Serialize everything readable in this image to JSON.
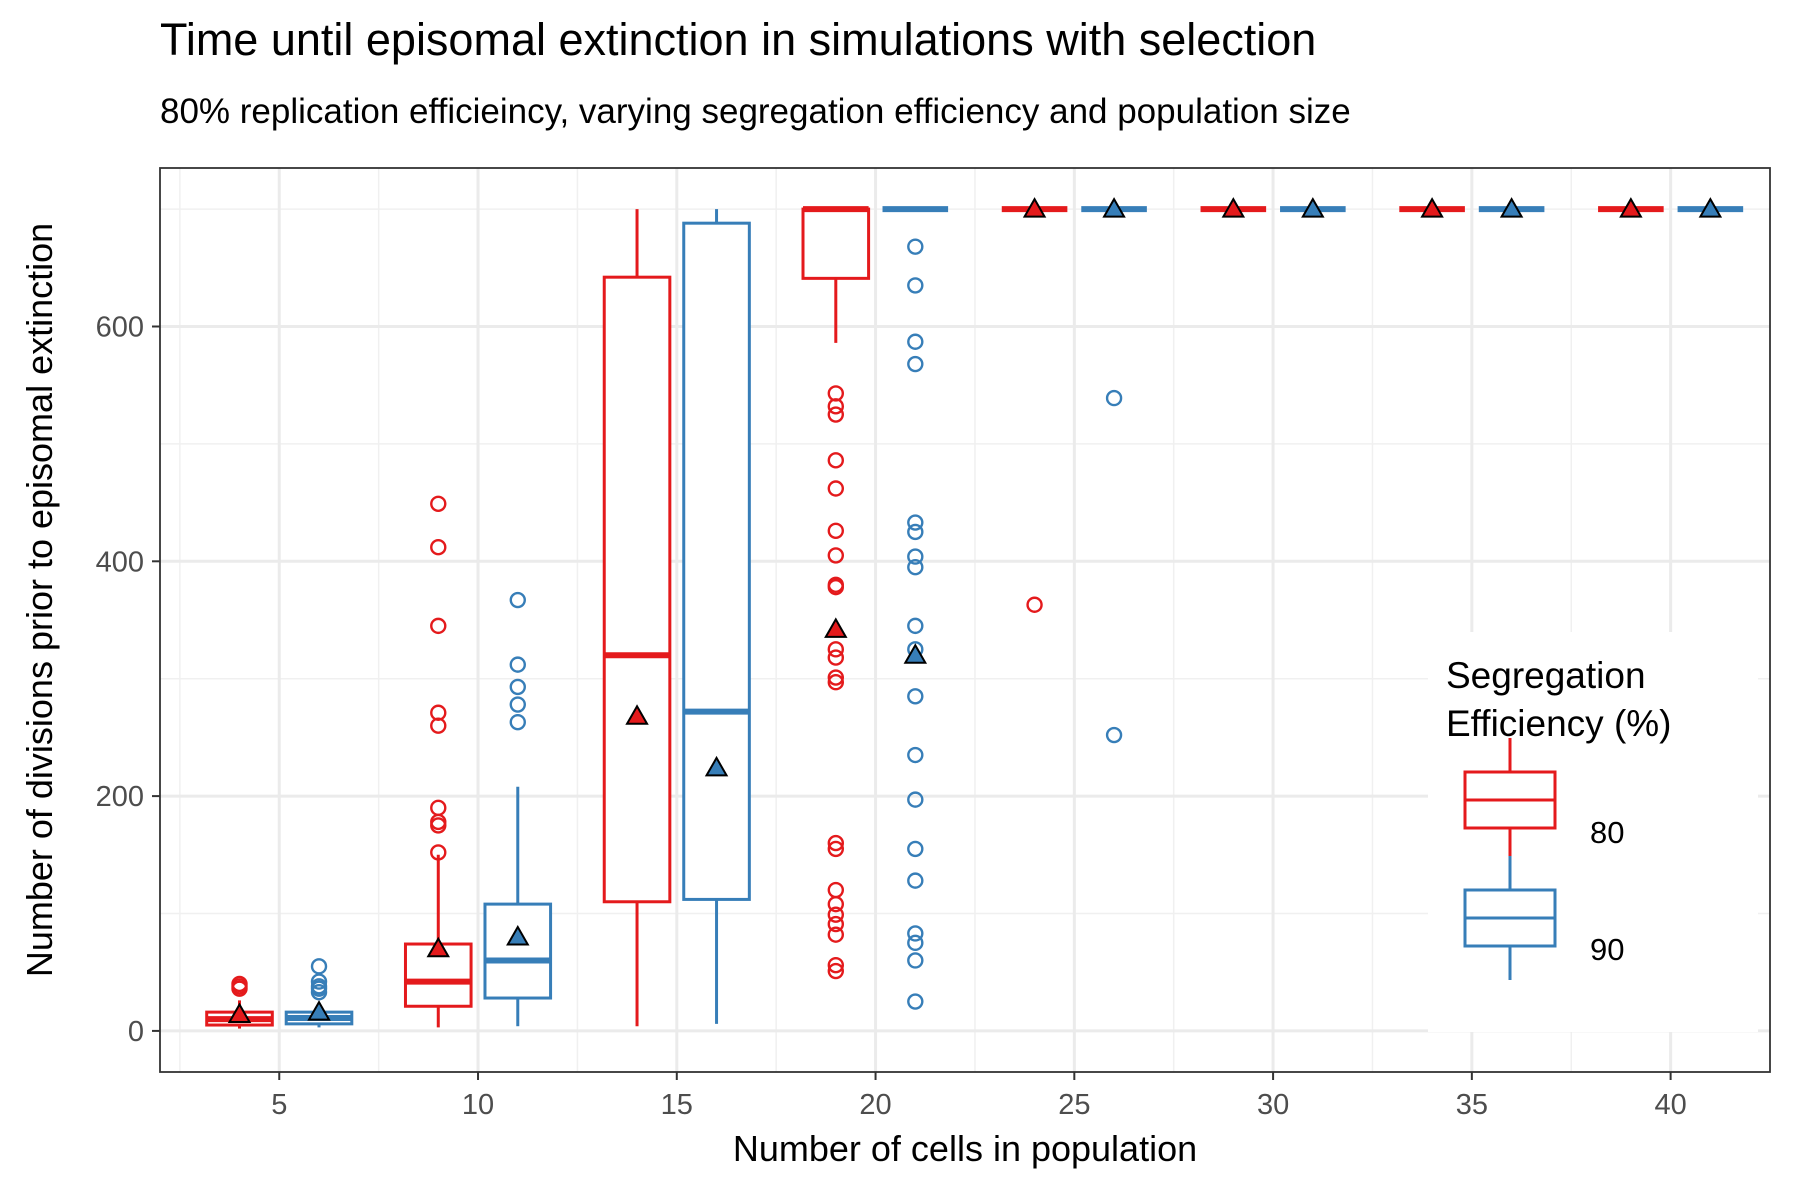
{
  "chart_data": {
    "type": "box",
    "title": "Time until episomal extinction in simulations with selection",
    "subtitle": "80% replication efficieincy, varying segregation efficiency and population size",
    "xlabel": "Number of cells in population",
    "ylabel": "Number of divisions prior to episomal extinction",
    "xlim": [
      2,
      42.5
    ],
    "ylim": [
      -35,
      735
    ],
    "x_ticks": [
      5,
      10,
      15,
      20,
      25,
      30,
      35,
      40
    ],
    "y_ticks": [
      0,
      200,
      400,
      600
    ],
    "grid": true,
    "legend": {
      "title_line1": "Segregation",
      "title_line2": "Efficiency (%)",
      "position": "right",
      "entries": [
        "80",
        "90"
      ]
    },
    "colors": {
      "80": "#e41a1c",
      "90": "#377eb8"
    },
    "groups": [
      {
        "population": 5,
        "series": "80",
        "x": 4,
        "q1": 5,
        "median": 10,
        "q3": 16,
        "whisker_low": 2,
        "whisker_high": 26,
        "mean": 14,
        "outliers": [
          36,
          38,
          40
        ]
      },
      {
        "population": 5,
        "series": "90",
        "x": 6,
        "q1": 6,
        "median": 11,
        "q3": 16,
        "whisker_low": 3,
        "whisker_high": 24,
        "mean": 16,
        "outliers": [
          33,
          36,
          38,
          42,
          55
        ]
      },
      {
        "population": 10,
        "series": "80",
        "x": 9,
        "q1": 21,
        "median": 42,
        "q3": 74,
        "whisker_low": 3,
        "whisker_high": 150,
        "mean": 70,
        "outliers": [
          152,
          175,
          178,
          190,
          260,
          271,
          345,
          412,
          449
        ]
      },
      {
        "population": 10,
        "series": "90",
        "x": 11,
        "q1": 28,
        "median": 60,
        "q3": 108,
        "whisker_low": 4,
        "whisker_high": 208,
        "mean": 80,
        "outliers": [
          263,
          278,
          293,
          312,
          367
        ]
      },
      {
        "population": 15,
        "series": "80",
        "x": 14,
        "q1": 110,
        "median": 320,
        "q3": 642,
        "whisker_low": 4,
        "whisker_high": 700,
        "mean": 268,
        "outliers": []
      },
      {
        "population": 15,
        "series": "90",
        "x": 16,
        "q1": 112,
        "median": 272,
        "q3": 688,
        "whisker_low": 6,
        "whisker_high": 700,
        "mean": 224,
        "outliers": []
      },
      {
        "population": 20,
        "series": "80",
        "x": 19,
        "q1": 641,
        "median": 700,
        "q3": 700,
        "whisker_low": 586,
        "whisker_high": 700,
        "mean": 342,
        "outliers": [
          51,
          56,
          82,
          91,
          99,
          108,
          120,
          155,
          160,
          297,
          301,
          318,
          325,
          378,
          380,
          405,
          426,
          462,
          486,
          525,
          532,
          543
        ]
      },
      {
        "population": 20,
        "series": "90",
        "x": 21,
        "q1": 700,
        "median": 700,
        "q3": 700,
        "whisker_low": 700,
        "whisker_high": 700,
        "mean": 320,
        "outliers": [
          25,
          60,
          75,
          83,
          128,
          155,
          197,
          235,
          285,
          325,
          345,
          395,
          404,
          425,
          433,
          568,
          587,
          635,
          668
        ]
      },
      {
        "population": 25,
        "series": "80",
        "x": 24,
        "q1": 700,
        "median": 700,
        "q3": 700,
        "whisker_low": 700,
        "whisker_high": 700,
        "mean": 700,
        "outliers": [
          363
        ]
      },
      {
        "population": 25,
        "series": "90",
        "x": 26,
        "q1": 700,
        "median": 700,
        "q3": 700,
        "whisker_low": 700,
        "whisker_high": 700,
        "mean": 700,
        "outliers": [
          252,
          539
        ]
      },
      {
        "population": 30,
        "series": "80",
        "x": 29,
        "q1": 700,
        "median": 700,
        "q3": 700,
        "whisker_low": 700,
        "whisker_high": 700,
        "mean": 700,
        "outliers": []
      },
      {
        "population": 30,
        "series": "90",
        "x": 31,
        "q1": 700,
        "median": 700,
        "q3": 700,
        "whisker_low": 700,
        "whisker_high": 700,
        "mean": 700,
        "outliers": []
      },
      {
        "population": 35,
        "series": "80",
        "x": 34,
        "q1": 700,
        "median": 700,
        "q3": 700,
        "whisker_low": 700,
        "whisker_high": 700,
        "mean": 700,
        "outliers": []
      },
      {
        "population": 35,
        "series": "90",
        "x": 36,
        "q1": 700,
        "median": 700,
        "q3": 700,
        "whisker_low": 700,
        "whisker_high": 700,
        "mean": 700,
        "outliers": []
      },
      {
        "population": 40,
        "series": "80",
        "x": 39,
        "q1": 700,
        "median": 700,
        "q3": 700,
        "whisker_low": 700,
        "whisker_high": 700,
        "mean": 700,
        "outliers": []
      },
      {
        "population": 40,
        "series": "90",
        "x": 41,
        "q1": 700,
        "median": 700,
        "q3": 700,
        "whisker_low": 700,
        "whisker_high": 700,
        "mean": 700,
        "outliers": []
      }
    ]
  }
}
